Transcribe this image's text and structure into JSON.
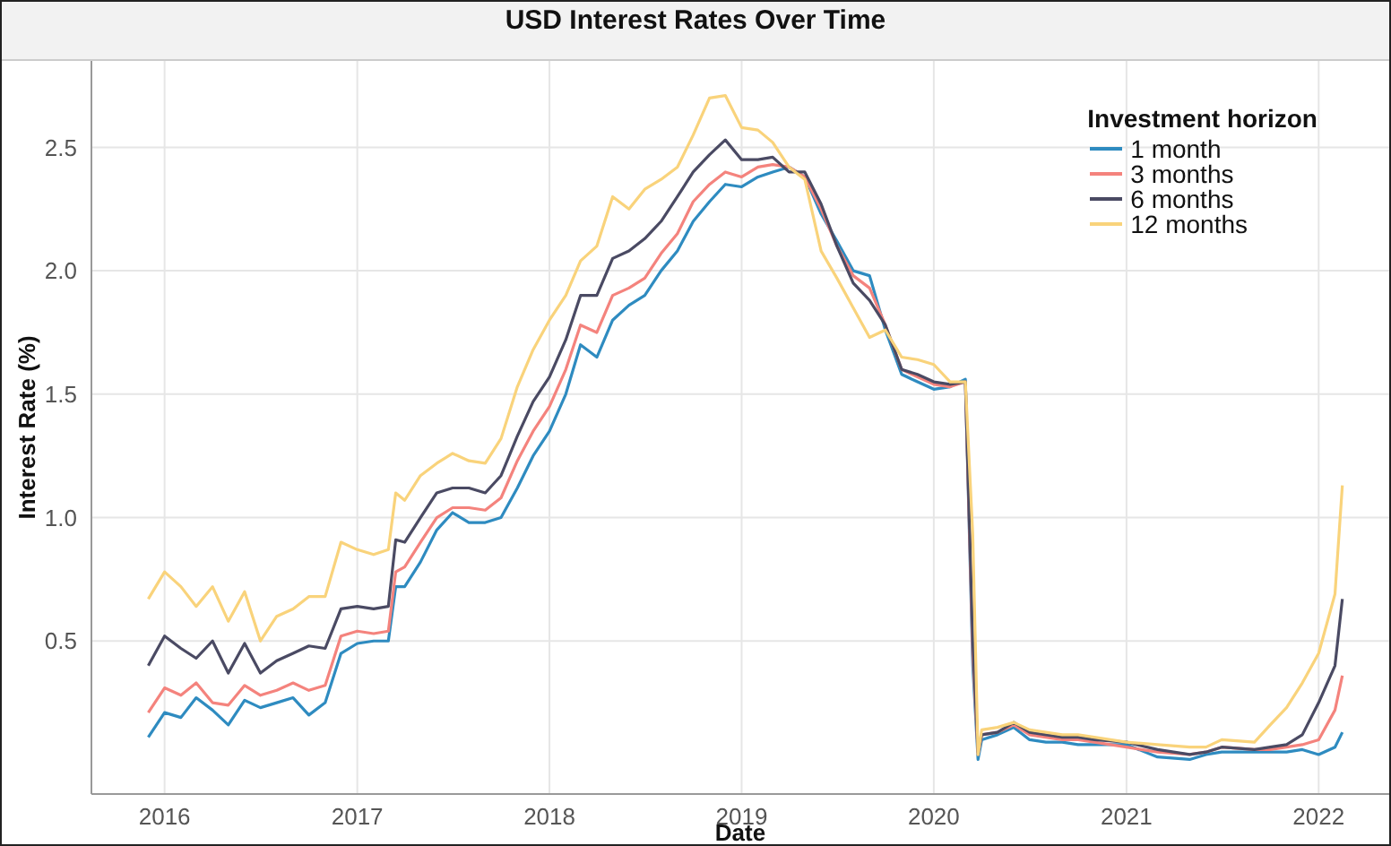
{
  "chart_data": {
    "type": "line",
    "title": "USD Interest Rates Over Time",
    "xlabel": "Date",
    "ylabel": "Interest Rate (%)",
    "legend_title": "Investment horizon",
    "legend": "top right",
    "grid": true,
    "marker": "none",
    "line_style": "solid",
    "xlim": [
      "2015-08-15",
      "2022-05-15"
    ],
    "xticks": [
      "2016",
      "2017",
      "2018",
      "2019",
      "2020",
      "2021",
      "2022"
    ],
    "ylim": [
      -0.12,
      2.85
    ],
    "yticks": [
      0.5,
      {
        "value": 1,
        "label": "1.0"
      },
      1.5,
      {
        "value": 2,
        "label": "2.0"
      },
      2.5
    ],
    "x": [
      "2015-12",
      "2016-01",
      "2016-02",
      "2016-03",
      "2016-04",
      "2016-05",
      "2016-06",
      "2016-07",
      "2016-08",
      "2016-09",
      "2016-10",
      "2016-11",
      "2016-12",
      "2017-01",
      "2017-02",
      "2017-03",
      "2017-03-15",
      "2017-04",
      "2017-05",
      "2017-06",
      "2017-07",
      "2017-08",
      "2017-09",
      "2017-10",
      "2017-11",
      "2017-12",
      "2018-01",
      "2018-02",
      "2018-03",
      "2018-04",
      "2018-05",
      "2018-06",
      "2018-07",
      "2018-08",
      "2018-09",
      "2018-10",
      "2018-11",
      "2018-12",
      "2019-01",
      "2019-02",
      "2019-03",
      "2019-04",
      "2019-05",
      "2019-06",
      "2019-07",
      "2019-08",
      "2019-09",
      "2019-10",
      "2019-11",
      "2019-12",
      "2020-01",
      "2020-02",
      "2020-03",
      "2020-03-15",
      "2020-03-25",
      "2020-04",
      "2020-05",
      "2020-06",
      "2020-07",
      "2020-08",
      "2020-09",
      "2020-10",
      "2020-11",
      "2021-01",
      "2021-03",
      "2021-05",
      "2021-06",
      "2021-07",
      "2021-09",
      "2021-10",
      "2021-11",
      "2021-12",
      "2022-01",
      "2022-02",
      "2022-02-15"
    ],
    "series": [
      {
        "name": "1 month",
        "color": "#2e8bc0",
        "values": [
          0.11,
          0.21,
          0.19,
          0.27,
          0.22,
          0.16,
          0.26,
          0.23,
          0.25,
          0.27,
          0.2,
          0.25,
          0.45,
          0.49,
          0.5,
          0.5,
          0.72,
          0.72,
          0.82,
          0.95,
          1.02,
          0.98,
          0.98,
          1.0,
          1.12,
          1.25,
          1.35,
          1.5,
          1.7,
          1.65,
          1.8,
          1.86,
          1.9,
          2.0,
          2.08,
          2.2,
          2.28,
          2.35,
          2.34,
          2.38,
          2.4,
          2.42,
          2.38,
          2.23,
          2.12,
          2.0,
          1.98,
          1.76,
          1.58,
          1.55,
          1.52,
          1.53,
          1.56,
          0.4,
          0.02,
          0.1,
          0.12,
          0.15,
          0.1,
          0.09,
          0.09,
          0.08,
          0.08,
          0.08,
          0.03,
          0.02,
          0.04,
          0.05,
          0.05,
          0.05,
          0.05,
          0.06,
          0.04,
          0.07,
          0.13
        ]
      },
      {
        "name": "3 months",
        "color": "#f4837d",
        "values": [
          0.21,
          0.31,
          0.28,
          0.33,
          0.25,
          0.24,
          0.32,
          0.28,
          0.3,
          0.33,
          0.3,
          0.32,
          0.52,
          0.54,
          0.53,
          0.54,
          0.78,
          0.8,
          0.9,
          1.0,
          1.04,
          1.04,
          1.03,
          1.08,
          1.23,
          1.35,
          1.45,
          1.6,
          1.78,
          1.75,
          1.9,
          1.93,
          1.97,
          2.07,
          2.15,
          2.28,
          2.35,
          2.4,
          2.38,
          2.42,
          2.43,
          2.42,
          2.38,
          2.25,
          2.1,
          1.98,
          1.93,
          1.78,
          1.6,
          1.57,
          1.54,
          1.53,
          1.55,
          0.45,
          0.04,
          0.12,
          0.13,
          0.16,
          0.12,
          0.11,
          0.1,
          0.1,
          0.09,
          0.07,
          0.05,
          0.04,
          0.05,
          0.07,
          0.06,
          0.06,
          0.07,
          0.08,
          0.1,
          0.22,
          0.36
        ]
      },
      {
        "name": "6 months",
        "color": "#4a4a63",
        "values": [
          0.4,
          0.52,
          0.47,
          0.43,
          0.5,
          0.37,
          0.49,
          0.37,
          0.42,
          0.45,
          0.48,
          0.47,
          0.63,
          0.64,
          0.63,
          0.64,
          0.91,
          0.9,
          1.0,
          1.1,
          1.12,
          1.12,
          1.1,
          1.17,
          1.33,
          1.47,
          1.57,
          1.72,
          1.9,
          1.9,
          2.05,
          2.08,
          2.13,
          2.2,
          2.3,
          2.4,
          2.47,
          2.53,
          2.45,
          2.45,
          2.46,
          2.4,
          2.4,
          2.27,
          2.1,
          1.95,
          1.88,
          1.78,
          1.6,
          1.58,
          1.55,
          1.54,
          1.55,
          0.5,
          0.05,
          0.12,
          0.13,
          0.17,
          0.13,
          0.12,
          0.11,
          0.11,
          0.1,
          0.09,
          0.06,
          0.04,
          0.05,
          0.07,
          0.06,
          0.07,
          0.08,
          0.12,
          0.25,
          0.4,
          0.67
        ]
      },
      {
        "name": "12 months",
        "color": "#f9d37b",
        "values": [
          0.67,
          0.78,
          0.72,
          0.64,
          0.72,
          0.58,
          0.7,
          0.5,
          0.6,
          0.63,
          0.68,
          0.68,
          0.9,
          0.87,
          0.85,
          0.87,
          1.1,
          1.07,
          1.17,
          1.22,
          1.26,
          1.23,
          1.22,
          1.32,
          1.53,
          1.68,
          1.8,
          1.9,
          2.04,
          2.1,
          2.3,
          2.25,
          2.33,
          2.37,
          2.42,
          2.55,
          2.7,
          2.71,
          2.58,
          2.57,
          2.52,
          2.42,
          2.37,
          2.08,
          1.97,
          1.85,
          1.73,
          1.76,
          1.65,
          1.64,
          1.62,
          1.55,
          1.55,
          0.93,
          0.04,
          0.14,
          0.15,
          0.17,
          0.14,
          0.13,
          0.12,
          0.12,
          0.11,
          0.09,
          0.08,
          0.07,
          0.07,
          0.1,
          0.09,
          0.16,
          0.23,
          0.33,
          0.45,
          0.69,
          1.13
        ]
      }
    ]
  }
}
